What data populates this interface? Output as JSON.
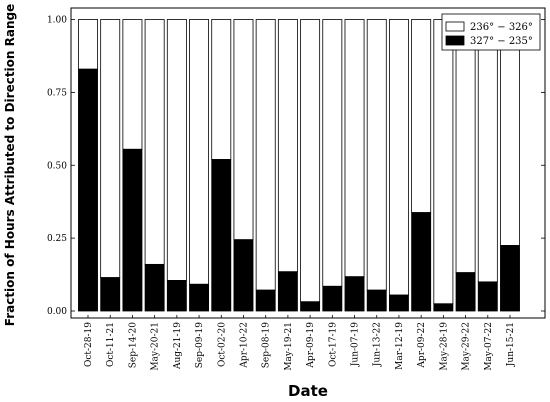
{
  "chart_data": {
    "type": "bar",
    "stacked": true,
    "xlabel": "Date",
    "ylabel": "Fraction of Hours Attributed to Direction Range",
    "ylim": [
      0,
      1
    ],
    "yticks": [
      "0.00",
      "0.25",
      "0.50",
      "0.75",
      "1.00"
    ],
    "categories": [
      "Oct-28-19",
      "Oct-11-21",
      "Sep-14-20",
      "May-20-21",
      "Aug-21-19",
      "Sep-09-19",
      "Oct-02-20",
      "Apr-10-22",
      "Sep-08-19",
      "May-19-21",
      "Apr-09-19",
      "Oct-17-19",
      "Jun-07-19",
      "Jun-13-22",
      "Mar-12-19",
      "Apr-09-22",
      "May-28-19",
      "May-29-22",
      "May-07-22",
      "Jun-15-21"
    ],
    "series": [
      {
        "name": "327° − 235°",
        "color": "#000000",
        "values": [
          0.83,
          0.115,
          0.555,
          0.16,
          0.105,
          0.092,
          0.52,
          0.245,
          0.072,
          0.135,
          0.032,
          0.085,
          0.118,
          0.072,
          0.055,
          0.338,
          0.025,
          0.132,
          0.1,
          0.225
        ]
      },
      {
        "name": "236° − 326°",
        "color": "#ffffff",
        "values": [
          0.17,
          0.885,
          0.445,
          0.84,
          0.895,
          0.908,
          0.48,
          0.755,
          0.928,
          0.865,
          0.968,
          0.915,
          0.882,
          0.928,
          0.945,
          0.662,
          0.975,
          0.868,
          0.9,
          0.775
        ]
      }
    ],
    "legend": {
      "position": "top-right",
      "entries": [
        "236° − 326°",
        "327° − 235°"
      ]
    }
  }
}
